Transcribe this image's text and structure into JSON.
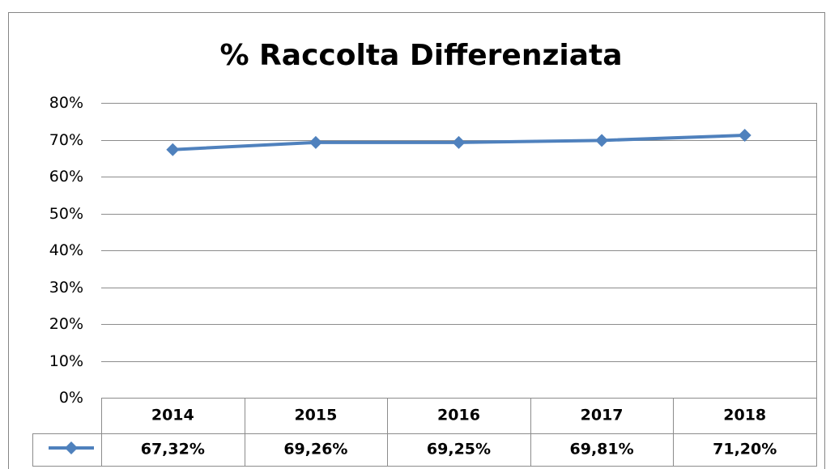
{
  "chart_data": {
    "type": "line",
    "title": "% Raccolta Differenziata",
    "categories": [
      "2014",
      "2015",
      "2016",
      "2017",
      "2018"
    ],
    "values": [
      67.32,
      69.26,
      69.25,
      69.81,
      71.2
    ],
    "value_labels": [
      "67,32%",
      "69,26%",
      "69,25%",
      "69,81%",
      "71,20%"
    ],
    "color": "#4f81bd",
    "ylim": [
      0,
      80
    ],
    "yticks": [
      {
        "value": 0,
        "label": "0%"
      },
      {
        "value": 10,
        "label": "10%"
      },
      {
        "value": 20,
        "label": "20%"
      },
      {
        "value": 30,
        "label": "30%"
      },
      {
        "value": 40,
        "label": "40%"
      },
      {
        "value": 50,
        "label": "50%"
      },
      {
        "value": 60,
        "label": "60%"
      },
      {
        "value": 70,
        "label": "70%"
      },
      {
        "value": 80,
        "label": "80%"
      }
    ],
    "grid": true
  }
}
